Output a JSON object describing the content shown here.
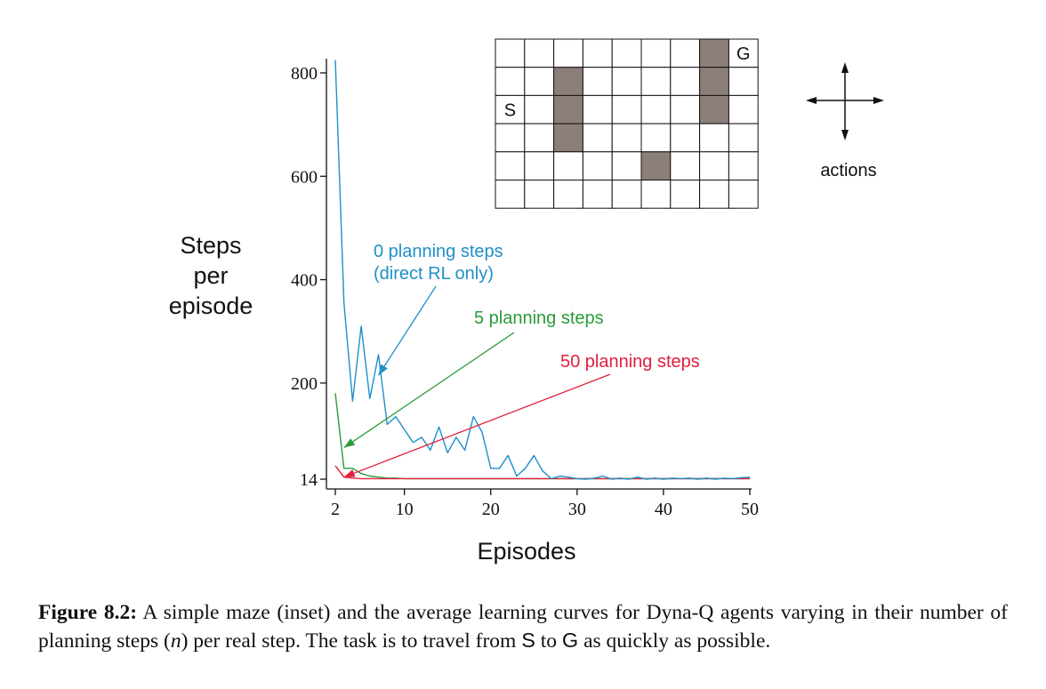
{
  "chart_data": {
    "type": "line",
    "xlabel": "Episodes",
    "ylabel": [
      "Steps",
      "per",
      "episode"
    ],
    "xlim": [
      2,
      50
    ],
    "ylim": [
      14,
      800
    ],
    "xticks": [
      2,
      10,
      20,
      30,
      40,
      50
    ],
    "yticks": [
      14,
      200,
      400,
      600,
      800
    ],
    "xtick_labels": [
      "2",
      "10",
      "20",
      "30",
      "40",
      "50"
    ],
    "ytick_labels": [
      "14",
      "200",
      "400",
      "600",
      "800"
    ],
    "grid": false,
    "legend": "annotations with arrows",
    "x": [
      2,
      3,
      4,
      5,
      6,
      7,
      8,
      9,
      10,
      11,
      12,
      13,
      14,
      15,
      16,
      17,
      18,
      19,
      20,
      21,
      22,
      23,
      24,
      25,
      26,
      27,
      28,
      29,
      30,
      31,
      32,
      33,
      34,
      35,
      36,
      37,
      38,
      39,
      40,
      41,
      42,
      43,
      44,
      45,
      46,
      47,
      48,
      49,
      50
    ],
    "series": [
      {
        "name": "0 planning steps (direct RL only)",
        "color": "#1f8fc7",
        "values": [
          825,
          355,
          165,
          310,
          170,
          255,
          120,
          135,
          110,
          85,
          95,
          70,
          115,
          65,
          95,
          70,
          135,
          105,
          35,
          35,
          60,
          20,
          35,
          60,
          30,
          15,
          20,
          18,
          15,
          14,
          16,
          20,
          14,
          16,
          14,
          18,
          14,
          16,
          14,
          16,
          15,
          16,
          14,
          16,
          14,
          16,
          15,
          17,
          18
        ]
      },
      {
        "name": "5 planning steps",
        "color": "#2a9a3a",
        "values": [
          180,
          35,
          35,
          25,
          20,
          18,
          16,
          16,
          15,
          15,
          15,
          15,
          15,
          15,
          15,
          15,
          15,
          15,
          15,
          15,
          15,
          15,
          15,
          15,
          15,
          15,
          15,
          15,
          15,
          15,
          15,
          15,
          15,
          15,
          15,
          15,
          15,
          15,
          15,
          15,
          15,
          15,
          15,
          15,
          15,
          15,
          15,
          15,
          15
        ]
      },
      {
        "name": "50 planning steps",
        "color": "#e0203c",
        "values": [
          40,
          18,
          16,
          15,
          15,
          15,
          15,
          15,
          15,
          15,
          15,
          15,
          15,
          15,
          15,
          15,
          15,
          15,
          15,
          15,
          15,
          15,
          15,
          15,
          15,
          15,
          15,
          15,
          15,
          15,
          15,
          15,
          15,
          15,
          15,
          15,
          15,
          15,
          15,
          15,
          15,
          15,
          15,
          15,
          15,
          15,
          15,
          15,
          15
        ]
      }
    ],
    "annotations": [
      {
        "text": [
          "0 planning steps",
          "(direct RL only)"
        ],
        "color": "#1f8fc7",
        "points_to": {
          "x": 7,
          "y": 215
        }
      },
      {
        "text": [
          "5 planning steps"
        ],
        "color": "#2a9a3a",
        "points_to": {
          "x": 3,
          "y": 75
        }
      },
      {
        "text": [
          "50 planning steps"
        ],
        "color": "#e0203c",
        "points_to": {
          "x": 3,
          "y": 18
        }
      }
    ]
  },
  "maze": {
    "rows": 6,
    "cols": 9,
    "walls": [
      [
        1,
        2
      ],
      [
        2,
        2
      ],
      [
        3,
        2
      ],
      [
        4,
        5
      ],
      [
        0,
        7
      ],
      [
        1,
        7
      ],
      [
        2,
        7
      ]
    ],
    "start": {
      "row": 2,
      "col": 0,
      "label": "S"
    },
    "goal": {
      "row": 0,
      "col": 8,
      "label": "G"
    },
    "wall_color": "#8c7f79",
    "actions_label": "actions"
  },
  "caption": {
    "label": "Figure 8.2:",
    "part1": " A simple maze (inset) and the average learning curves for Dyna-Q agents varying in their number of planning steps (",
    "math": "n",
    "part2": ") per real step. The task is to travel from ",
    "s": "S",
    "part3": " to ",
    "g": "G",
    "part4": " as quickly as possible."
  }
}
